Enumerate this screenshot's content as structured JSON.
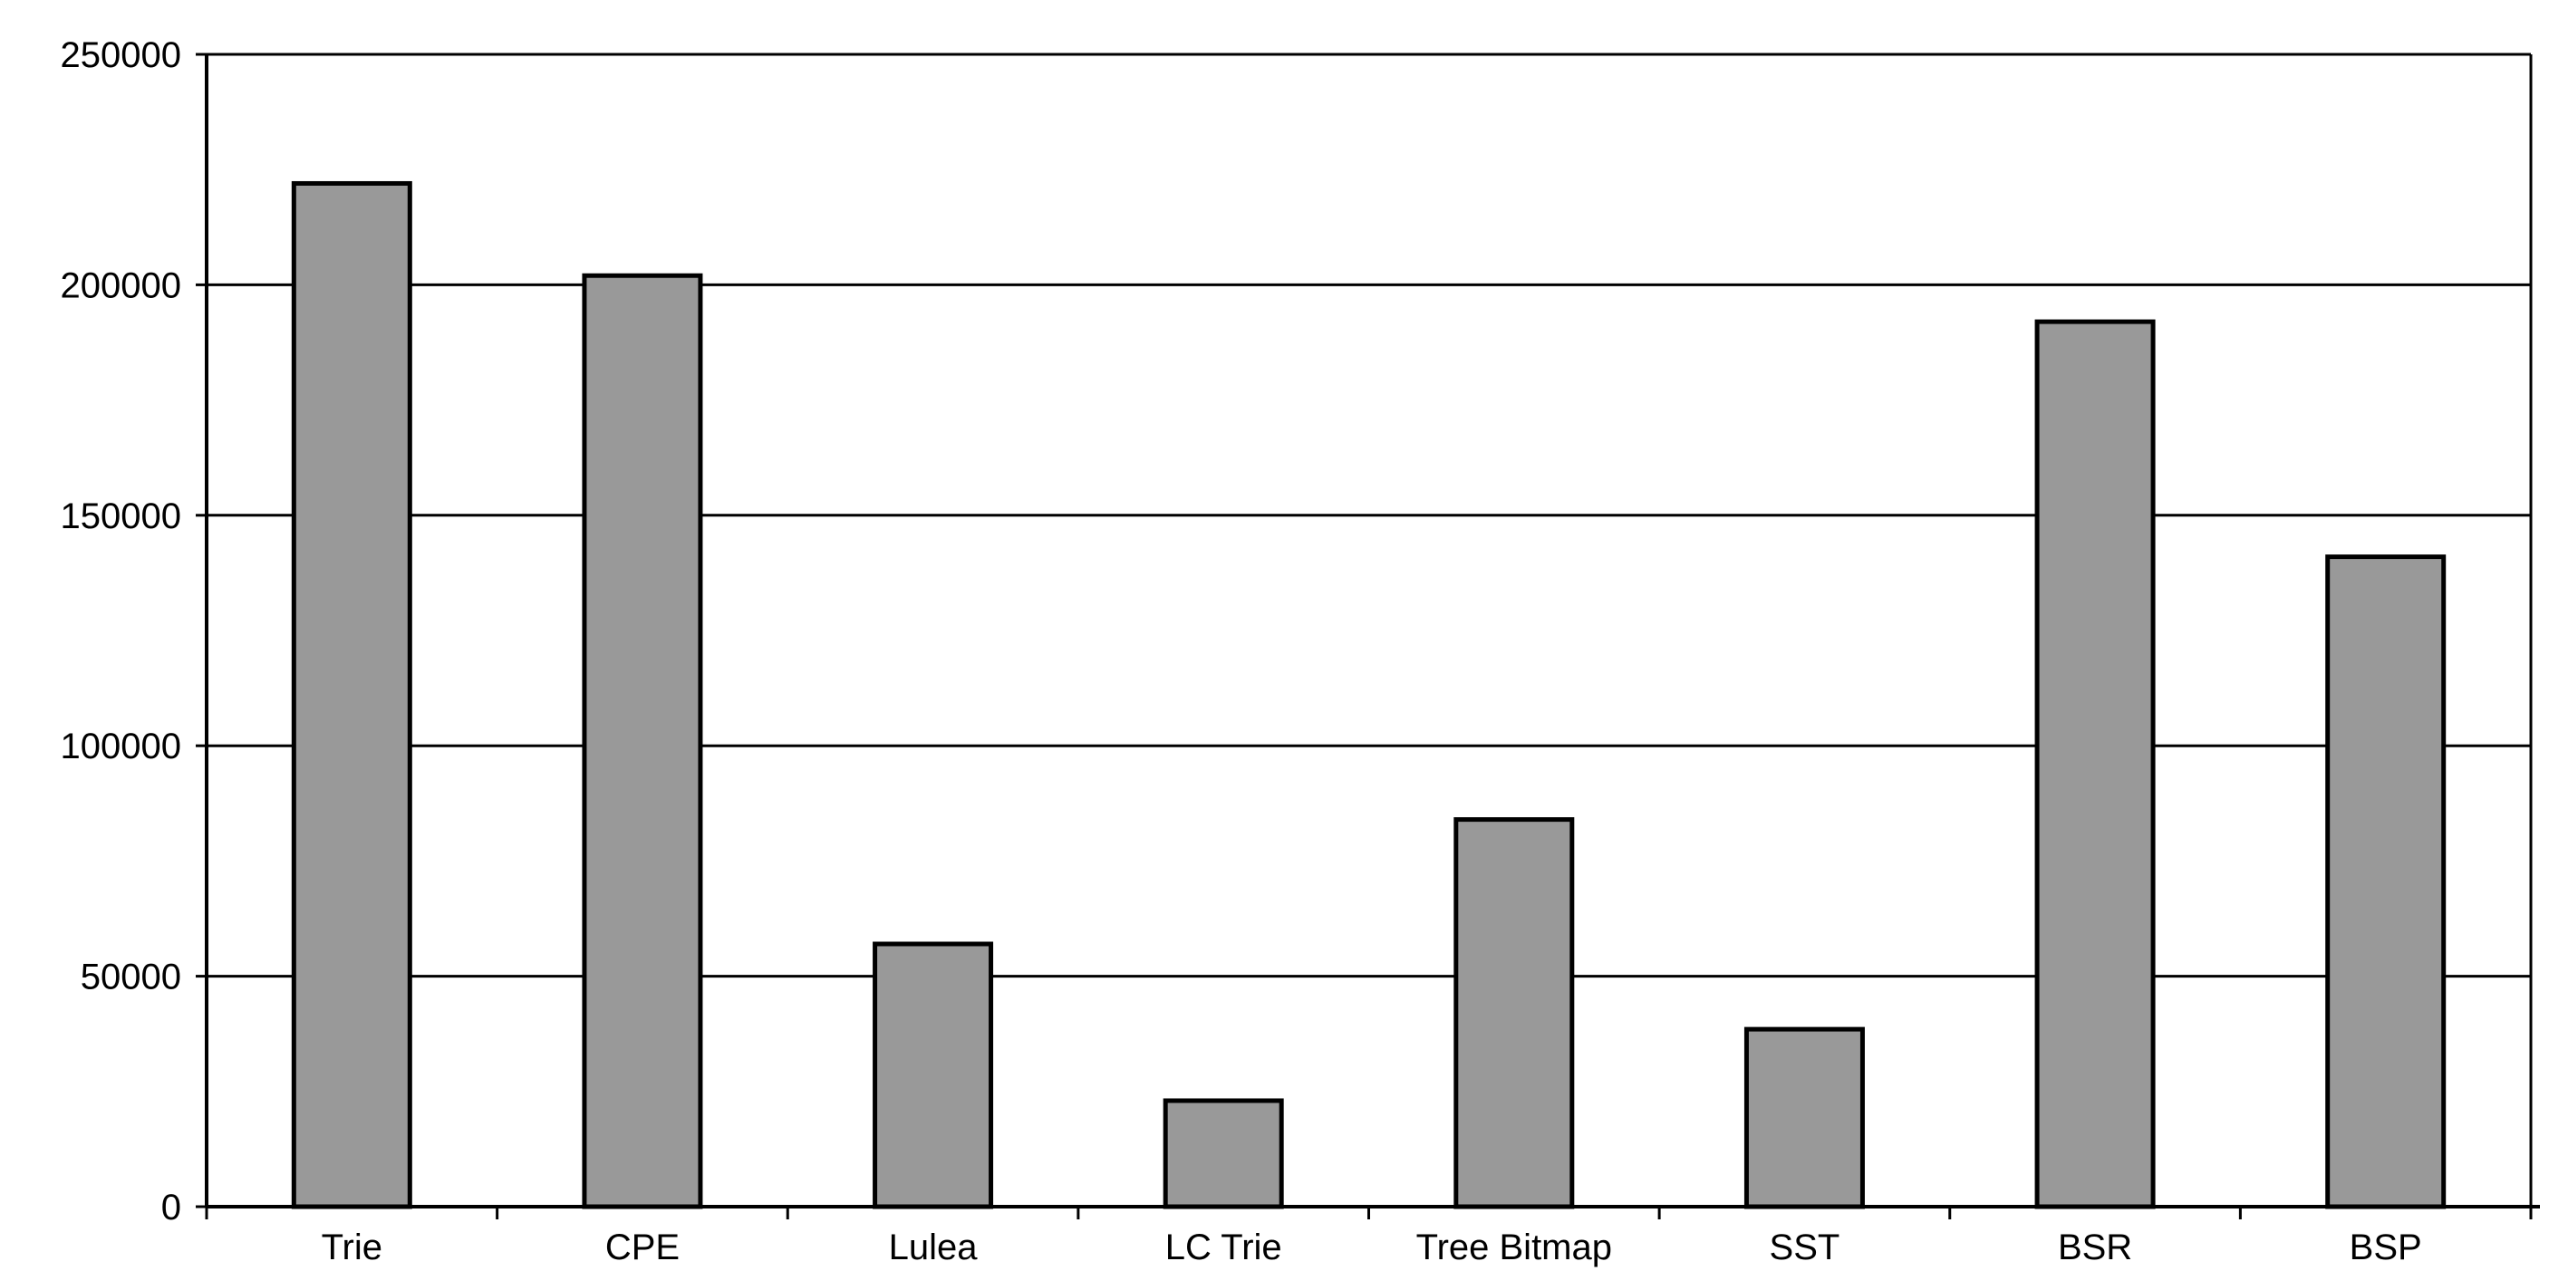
{
  "chart_data": {
    "type": "bar",
    "title": "",
    "xlabel": "",
    "ylabel": "",
    "categories": [
      "Trie",
      "CPE",
      "Lulea",
      "LC Trie",
      "Tree Bitmap",
      "SST",
      "BSR",
      "BSP"
    ],
    "values": [
      222000,
      202000,
      57000,
      23000,
      84000,
      38500,
      192000,
      141000
    ],
    "ylim": [
      0,
      250000
    ],
    "yticks": [
      0,
      50000,
      100000,
      150000,
      200000,
      250000
    ],
    "ytick_labels": [
      "0",
      "50000",
      "100000",
      "150000",
      "200000",
      "250000"
    ],
    "grid": true,
    "legend": "none",
    "colors": {
      "bar_fill": "#999999",
      "bar_stroke": "#000000",
      "grid": "#000000",
      "background": "#ffffff"
    }
  }
}
